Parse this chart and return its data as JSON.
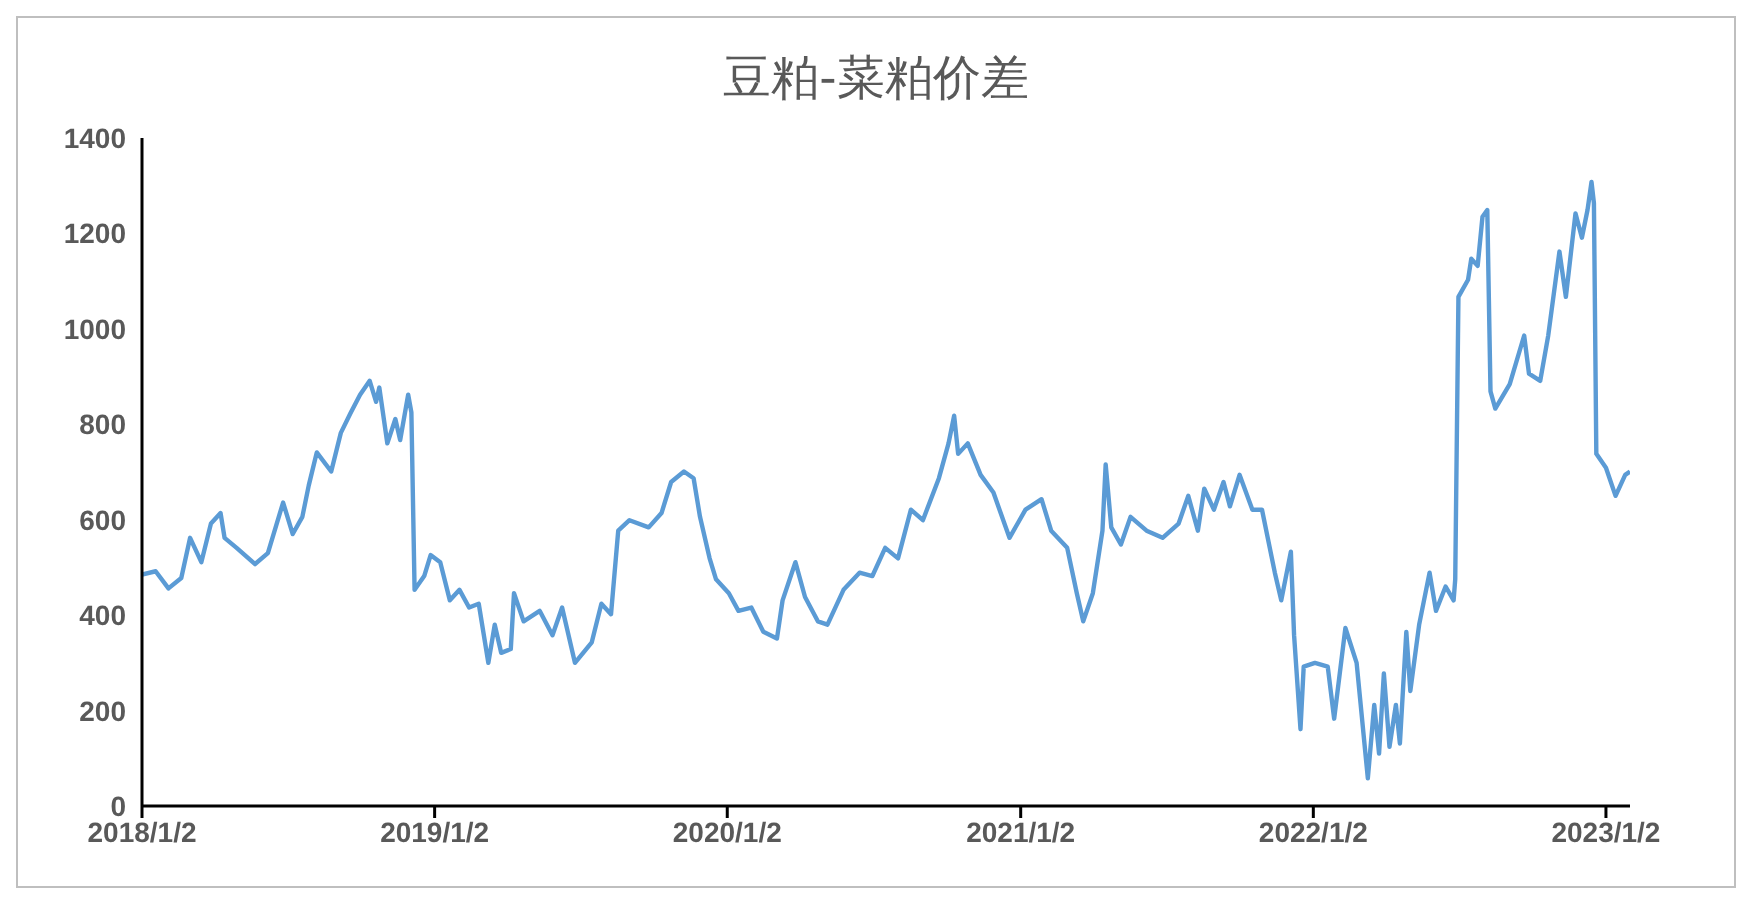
{
  "chart_data": {
    "type": "line",
    "title": "豆粕-菜粕价差",
    "x": [
      "2018-01-02",
      "2018-01-19",
      "2018-02-04",
      "2018-02-20",
      "2018-03-03",
      "2018-03-17",
      "2018-03-29",
      "2018-04-10",
      "2018-04-15",
      "2018-04-30",
      "2018-05-23",
      "2018-06-08",
      "2018-06-27",
      "2018-07-09",
      "2018-07-21",
      "2018-07-29",
      "2018-08-08",
      "2018-08-26",
      "2018-09-07",
      "2018-09-19",
      "2018-10-01",
      "2018-10-13",
      "2018-10-21",
      "2018-10-25",
      "2018-11-04",
      "2018-11-14",
      "2018-11-20",
      "2018-11-30",
      "2018-12-04",
      "2018-12-08",
      "2018-12-20",
      "2018-12-28",
      "2019-01-09",
      "2019-01-21",
      "2019-02-02",
      "2019-02-14",
      "2019-02-26",
      "2019-03-10",
      "2019-03-18",
      "2019-03-26",
      "2019-04-07",
      "2019-04-11",
      "2019-04-23",
      "2019-05-13",
      "2019-05-29",
      "2019-06-10",
      "2019-06-26",
      "2019-07-17",
      "2019-07-29",
      "2019-08-10",
      "2019-08-19",
      "2019-09-02",
      "2019-09-26",
      "2019-10-12",
      "2019-10-24",
      "2019-11-09",
      "2019-11-21",
      "2019-11-29",
      "2019-12-11",
      "2019-12-19",
      "2020-01-04",
      "2020-01-16",
      "2020-02-01",
      "2020-02-16",
      "2020-03-04",
      "2020-03-11",
      "2020-03-27",
      "2020-04-08",
      "2020-04-24",
      "2020-05-06",
      "2020-05-26",
      "2020-06-15",
      "2020-07-01",
      "2020-07-17",
      "2020-08-02",
      "2020-08-18",
      "2020-09-02",
      "2020-09-22",
      "2020-10-04",
      "2020-10-11",
      "2020-10-16",
      "2020-10-28",
      "2020-11-13",
      "2020-11-29",
      "2020-12-19",
      "2021-01-08",
      "2021-01-28",
      "2021-02-09",
      "2021-03-01",
      "2021-03-13",
      "2021-03-21",
      "2021-04-02",
      "2021-04-14",
      "2021-04-18",
      "2021-04-25",
      "2021-05-07",
      "2021-05-19",
      "2021-06-08",
      "2021-06-28",
      "2021-07-18",
      "2021-07-30",
      "2021-08-11",
      "2021-08-19",
      "2021-08-31",
      "2021-09-12",
      "2021-09-20",
      "2021-10-02",
      "2021-10-18",
      "2021-10-30",
      "2021-11-15",
      "2021-11-23",
      "2021-12-05",
      "2021-12-09",
      "2021-12-17",
      "2021-12-21",
      "2022-01-04",
      "2022-01-20",
      "2022-01-28",
      "2022-02-11",
      "2022-02-25",
      "2022-03-11",
      "2022-03-19",
      "2022-03-25",
      "2022-03-31",
      "2022-04-07",
      "2022-04-15",
      "2022-04-20",
      "2022-04-28",
      "2022-05-03",
      "2022-05-14",
      "2022-05-27",
      "2022-06-04",
      "2022-06-16",
      "2022-06-26",
      "2022-06-28",
      "2022-07-02",
      "2022-07-14",
      "2022-07-18",
      "2022-07-26",
      "2022-08-01",
      "2022-08-07",
      "2022-08-11",
      "2022-08-17",
      "2022-09-04",
      "2022-09-22",
      "2022-09-28",
      "2022-10-12",
      "2022-10-22",
      "2022-11-05",
      "2022-11-13",
      "2022-11-25",
      "2022-12-03",
      "2022-12-10",
      "2022-12-15",
      "2022-12-18",
      "2022-12-21",
      "2023-01-02",
      "2023-01-14",
      "2023-01-26",
      "2023-02-01"
    ],
    "values": [
      485,
      492,
      456,
      478,
      562,
      511,
      592,
      614,
      562,
      541,
      507,
      530,
      636,
      570,
      606,
      672,
      741,
      701,
      782,
      823,
      862,
      891,
      847,
      877,
      760,
      811,
      767,
      862,
      825,
      453,
      482,
      526,
      511,
      431,
      453,
      416,
      424,
      300,
      380,
      321,
      329,
      446,
      387,
      409,
      358,
      416,
      300,
      343,
      424,
      402,
      577,
      599,
      584,
      614,
      679,
      701,
      687,
      606,
      519,
      475,
      446,
      409,
      416,
      365,
      351,
      431,
      511,
      438,
      387,
      380,
      453,
      489,
      482,
      541,
      519,
      621,
      599,
      687,
      760,
      818,
      738,
      760,
      694,
      657,
      562,
      621,
      643,
      577,
      541,
      446,
      387,
      446,
      577,
      716,
      584,
      548,
      606,
      577,
      562,
      592,
      650,
      577,
      665,
      621,
      679,
      628,
      694,
      621,
      621,
      489,
      431,
      533,
      358,
      161,
      292,
      300,
      292,
      183,
      373,
      300,
      58,
      212,
      110,
      278,
      124,
      212,
      131,
      365,
      241,
      380,
      489,
      409,
      460,
      431,
      475,
      1067,
      1103,
      1147,
      1132,
      1235,
      1249,
      869,
      833,
      884,
      986,
      906,
      891,
      986,
      1162,
      1067,
      1242,
      1191,
      1249,
      1308,
      1264,
      738,
      709,
      650,
      694,
      701
    ],
    "color": "#5b9bd5",
    "xlim": [
      "2018-01-02",
      "2023-02-01"
    ],
    "xticks": [
      {
        "value": "2018-01-02",
        "label": "2018/1/2"
      },
      {
        "value": "2019-01-02",
        "label": "2019/1/2"
      },
      {
        "value": "2020-01-02",
        "label": "2020/1/2"
      },
      {
        "value": "2021-01-02",
        "label": "2021/1/2"
      },
      {
        "value": "2022-01-02",
        "label": "2022/1/2"
      },
      {
        "value": "2023-01-02",
        "label": "2023/1/2"
      }
    ],
    "ylim": [
      0,
      1400
    ],
    "yticks": [
      0,
      200,
      400,
      600,
      800,
      1000,
      1200,
      1400
    ],
    "grid": false,
    "legend": false,
    "marker": "none",
    "line_style": "solid"
  }
}
